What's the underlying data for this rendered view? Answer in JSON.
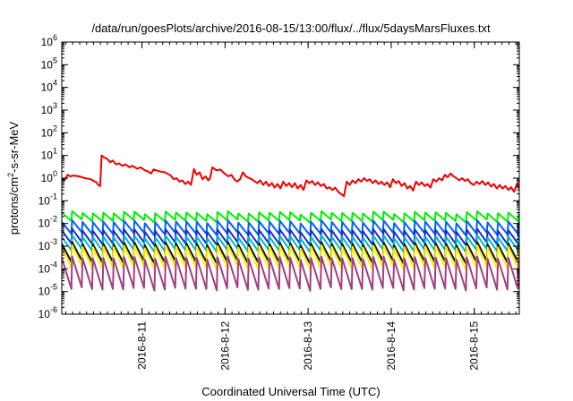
{
  "chart_data": {
    "type": "line",
    "title": "/data/run/goesPlots/archive/2016-08-15/13:00/flux/../flux/5daysMarsFluxes.txt",
    "xlabel": "Coordinated Universal Time (UTC)",
    "ylabel": {
      "base": "protons/cm",
      "sup": "2",
      "rest": "-s-sr-MeV"
    },
    "y_scale": "log",
    "ylim": [
      1e-06,
      1000000.0
    ],
    "y_ticks": [
      {
        "v": 1e-06,
        "base": "10",
        "exp": "-6"
      },
      {
        "v": 1e-05,
        "base": "10",
        "exp": "-5"
      },
      {
        "v": 0.0001,
        "base": "10",
        "exp": "-4"
      },
      {
        "v": 0.001,
        "base": "10",
        "exp": "-3"
      },
      {
        "v": 0.01,
        "base": "10",
        "exp": "-2"
      },
      {
        "v": 0.1,
        "base": "10",
        "exp": "-1"
      },
      {
        "v": 1.0,
        "base": "10",
        "exp": "0"
      },
      {
        "v": 10.0,
        "base": "10",
        "exp": "1"
      },
      {
        "v": 100.0,
        "base": "10",
        "exp": "2"
      },
      {
        "v": 1000.0,
        "base": "10",
        "exp": "3"
      },
      {
        "v": 10000.0,
        "base": "10",
        "exp": "4"
      },
      {
        "v": 100000.0,
        "base": "10",
        "exp": "5"
      },
      {
        "v": 1000000.0,
        "base": "10",
        "exp": "6"
      }
    ],
    "xlim": [
      "2016-08-10T00:50",
      "2016-08-15T13:00"
    ],
    "x_ticks": [
      {
        "date": "2016-08-11",
        "label": "2016-8-11"
      },
      {
        "date": "2016-08-12",
        "label": "2016-8-12"
      },
      {
        "date": "2016-08-13",
        "label": "2016-8-13"
      },
      {
        "date": "2016-08-14",
        "label": "2016-8-14"
      },
      {
        "date": "2016-08-15",
        "label": "2016-8-15"
      }
    ],
    "grid": false,
    "legend": "none",
    "series": [
      {
        "color": "#ee0000",
        "points": [
          [
            "2016-08-10T00:50",
            1.0
          ],
          [
            "2016-08-10T01:40",
            0.8
          ],
          [
            "2016-08-10T02:30",
            1.4
          ],
          [
            "2016-08-10T03:20",
            1.2
          ],
          [
            "2016-08-10T04:10",
            1.3
          ],
          [
            "2016-08-10T05:50",
            1.2
          ],
          [
            "2016-08-10T07:30",
            1.0
          ],
          [
            "2016-08-10T09:10",
            0.9
          ],
          [
            "2016-08-10T10:50",
            0.65
          ],
          [
            "2016-08-10T11:20",
            0.5
          ],
          [
            "2016-08-10T11:55",
            0.45
          ],
          [
            "2016-08-10T12:20",
            10
          ],
          [
            "2016-08-10T13:10",
            8
          ],
          [
            "2016-08-10T14:00",
            7
          ],
          [
            "2016-08-10T14:50",
            5
          ],
          [
            "2016-08-10T15:35",
            6
          ],
          [
            "2016-08-10T16:30",
            4
          ],
          [
            "2016-08-10T17:20",
            4.5
          ],
          [
            "2016-08-10T18:20",
            3.5
          ],
          [
            "2016-08-10T19:10",
            4
          ],
          [
            "2016-08-10T20:30",
            3
          ],
          [
            "2016-08-10T21:10",
            3.5
          ],
          [
            "2016-08-10T22:40",
            2.6
          ],
          [
            "2016-08-10T23:35",
            3
          ],
          [
            "2016-08-11T00:50",
            2.2
          ],
          [
            "2016-08-11T01:40",
            2
          ],
          [
            "2016-08-11T02:40",
            1.6
          ],
          [
            "2016-08-11T03:20",
            2.4
          ],
          [
            "2016-08-11T04:10",
            2.2
          ],
          [
            "2016-08-11T05:00",
            2
          ],
          [
            "2016-08-11T06:40",
            1.8
          ],
          [
            "2016-08-11T08:20",
            1.3
          ],
          [
            "2016-08-11T09:10",
            0.9
          ],
          [
            "2016-08-11T10:00",
            1.0
          ],
          [
            "2016-08-11T10:50",
            0.7
          ],
          [
            "2016-08-11T11:40",
            0.8
          ],
          [
            "2016-08-11T12:30",
            0.55
          ],
          [
            "2016-08-11T13:20",
            0.7
          ],
          [
            "2016-08-11T14:10",
            0.5
          ],
          [
            "2016-08-11T15:00",
            2.5
          ],
          [
            "2016-08-11T15:50",
            1.4
          ],
          [
            "2016-08-11T16:40",
            1.8
          ],
          [
            "2016-08-11T17:30",
            0.9
          ],
          [
            "2016-08-11T18:20",
            1.2
          ],
          [
            "2016-08-11T19:10",
            0.8
          ],
          [
            "2016-08-11T19:40",
            1.0
          ],
          [
            "2016-08-11T20:20",
            3
          ],
          [
            "2016-08-11T21:30",
            2.2
          ],
          [
            "2016-08-11T22:40",
            2.4
          ],
          [
            "2016-08-11T23:50",
            1.6
          ],
          [
            "2016-08-12T01:00",
            1.2
          ],
          [
            "2016-08-12T01:50",
            1.4
          ],
          [
            "2016-08-12T02:40",
            0.9
          ],
          [
            "2016-08-12T03:30",
            0.7
          ],
          [
            "2016-08-12T04:20",
            0.9
          ],
          [
            "2016-08-12T05:10",
            1.8
          ],
          [
            "2016-08-12T06:00",
            1.2
          ],
          [
            "2016-08-12T07:40",
            0.9
          ],
          [
            "2016-08-12T09:20",
            0.6
          ],
          [
            "2016-08-12T10:10",
            0.8
          ],
          [
            "2016-08-12T11:00",
            0.5
          ],
          [
            "2016-08-12T11:50",
            0.7
          ],
          [
            "2016-08-12T12:40",
            0.45
          ],
          [
            "2016-08-12T13:30",
            0.6
          ],
          [
            "2016-08-12T14:20",
            0.38
          ],
          [
            "2016-08-12T15:10",
            0.55
          ],
          [
            "2016-08-12T16:00",
            0.35
          ],
          [
            "2016-08-12T16:50",
            0.7
          ],
          [
            "2016-08-12T17:40",
            0.45
          ],
          [
            "2016-08-12T18:30",
            0.6
          ],
          [
            "2016-08-12T19:20",
            0.4
          ],
          [
            "2016-08-12T20:10",
            0.6
          ],
          [
            "2016-08-12T21:00",
            0.35
          ],
          [
            "2016-08-12T21:50",
            0.5
          ],
          [
            "2016-08-12T22:40",
            0.3
          ],
          [
            "2016-08-12T23:30",
            0.8
          ],
          [
            "2016-08-13T00:20",
            0.6
          ],
          [
            "2016-08-13T01:10",
            0.75
          ],
          [
            "2016-08-13T02:00",
            0.5
          ],
          [
            "2016-08-13T02:50",
            0.65
          ],
          [
            "2016-08-13T03:40",
            0.45
          ],
          [
            "2016-08-13T04:30",
            0.55
          ],
          [
            "2016-08-13T05:20",
            0.35
          ],
          [
            "2016-08-13T06:10",
            0.4
          ],
          [
            "2016-08-13T07:00",
            0.3
          ],
          [
            "2016-08-13T07:50",
            0.38
          ],
          [
            "2016-08-13T08:40",
            0.25
          ],
          [
            "2016-08-13T09:30",
            0.2
          ],
          [
            "2016-08-13T10:20",
            0.16
          ],
          [
            "2016-08-13T11:10",
            0.7
          ],
          [
            "2016-08-13T12:00",
            0.5
          ],
          [
            "2016-08-13T12:50",
            0.8
          ],
          [
            "2016-08-13T13:40",
            0.6
          ],
          [
            "2016-08-13T14:30",
            0.9
          ],
          [
            "2016-08-13T15:20",
            0.7
          ],
          [
            "2016-08-13T16:10",
            1.0
          ],
          [
            "2016-08-13T17:00",
            0.75
          ],
          [
            "2016-08-13T17:50",
            0.9
          ],
          [
            "2016-08-13T18:40",
            0.6
          ],
          [
            "2016-08-13T19:30",
            0.8
          ],
          [
            "2016-08-13T20:20",
            0.55
          ],
          [
            "2016-08-13T21:10",
            0.7
          ],
          [
            "2016-08-13T22:00",
            0.5
          ],
          [
            "2016-08-13T22:50",
            0.65
          ],
          [
            "2016-08-13T23:40",
            0.4
          ],
          [
            "2016-08-14T00:30",
            0.9
          ],
          [
            "2016-08-14T01:20",
            0.6
          ],
          [
            "2016-08-14T02:10",
            0.75
          ],
          [
            "2016-08-14T03:00",
            0.45
          ],
          [
            "2016-08-14T03:50",
            0.6
          ],
          [
            "2016-08-14T04:40",
            0.35
          ],
          [
            "2016-08-14T05:30",
            0.45
          ],
          [
            "2016-08-14T06:20",
            0.28
          ],
          [
            "2016-08-14T07:10",
            0.7
          ],
          [
            "2016-08-14T08:00",
            0.5
          ],
          [
            "2016-08-14T08:50",
            0.65
          ],
          [
            "2016-08-14T09:40",
            0.45
          ],
          [
            "2016-08-14T10:30",
            0.55
          ],
          [
            "2016-08-14T11:20",
            0.38
          ],
          [
            "2016-08-14T12:10",
            0.9
          ],
          [
            "2016-08-14T13:00",
            0.7
          ],
          [
            "2016-08-14T13:50",
            1.0
          ],
          [
            "2016-08-14T14:40",
            0.8
          ],
          [
            "2016-08-14T15:30",
            1.4
          ],
          [
            "2016-08-14T16:20",
            1.1
          ],
          [
            "2016-08-14T17:10",
            1.6
          ],
          [
            "2016-08-14T18:00",
            1.2
          ],
          [
            "2016-08-14T18:50",
            1.0
          ],
          [
            "2016-08-14T19:40",
            0.8
          ],
          [
            "2016-08-14T20:30",
            1.0
          ],
          [
            "2016-08-14T21:20",
            0.75
          ],
          [
            "2016-08-14T22:10",
            0.9
          ],
          [
            "2016-08-14T23:00",
            0.6
          ],
          [
            "2016-08-14T23:50",
            0.5
          ],
          [
            "2016-08-15T00:40",
            0.7
          ],
          [
            "2016-08-15T01:30",
            0.55
          ],
          [
            "2016-08-15T02:20",
            0.75
          ],
          [
            "2016-08-15T03:10",
            0.5
          ],
          [
            "2016-08-15T04:00",
            0.65
          ],
          [
            "2016-08-15T04:50",
            0.42
          ],
          [
            "2016-08-15T05:40",
            0.55
          ],
          [
            "2016-08-15T06:30",
            0.35
          ],
          [
            "2016-08-15T07:20",
            0.5
          ],
          [
            "2016-08-15T08:10",
            0.35
          ],
          [
            "2016-08-15T09:00",
            0.45
          ],
          [
            "2016-08-15T09:50",
            0.3
          ],
          [
            "2016-08-15T10:40",
            0.4
          ],
          [
            "2016-08-15T11:30",
            0.25
          ],
          [
            "2016-08-15T12:20",
            0.55
          ],
          [
            "2016-08-15T13:00",
            0.35
          ]
        ]
      },
      {
        "color": "#00ee00",
        "sawtooth": {
          "peak": 0.03,
          "trough": 0.013
        }
      },
      {
        "color": "#0060ff",
        "sawtooth": {
          "peak": 0.012,
          "trough": 0.0035
        }
      },
      {
        "color": "#1a2ec8",
        "sawtooth": {
          "peak": 0.005,
          "trough": 0.0013
        }
      },
      {
        "color": "#00b8c8",
        "sawtooth": {
          "peak": 0.0026,
          "trough": 0.00065
        }
      },
      {
        "color": "#111111",
        "sawtooth": {
          "peak": 0.0013,
          "trough": 0.0002
        }
      },
      {
        "color": "#ffee00",
        "sawtooth": {
          "peak": 0.00095,
          "trough": 0.00011
        }
      },
      {
        "color": "#a04080",
        "sawtooth": {
          "peak": 0.0003,
          "trough": 1.3e-05
        }
      }
    ]
  }
}
